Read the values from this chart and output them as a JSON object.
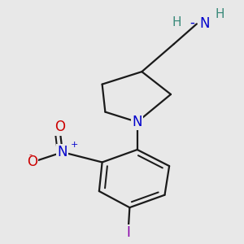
{
  "background_color": "#e8e8e8",
  "atom_colors": {
    "N": "#0000cc",
    "O": "#cc0000",
    "I": "#8800aa",
    "C": "#1a1a1a",
    "H": "#3a8a7a"
  },
  "figsize": [
    3.0,
    3.0
  ],
  "dpi": 100,
  "lw": 1.6
}
